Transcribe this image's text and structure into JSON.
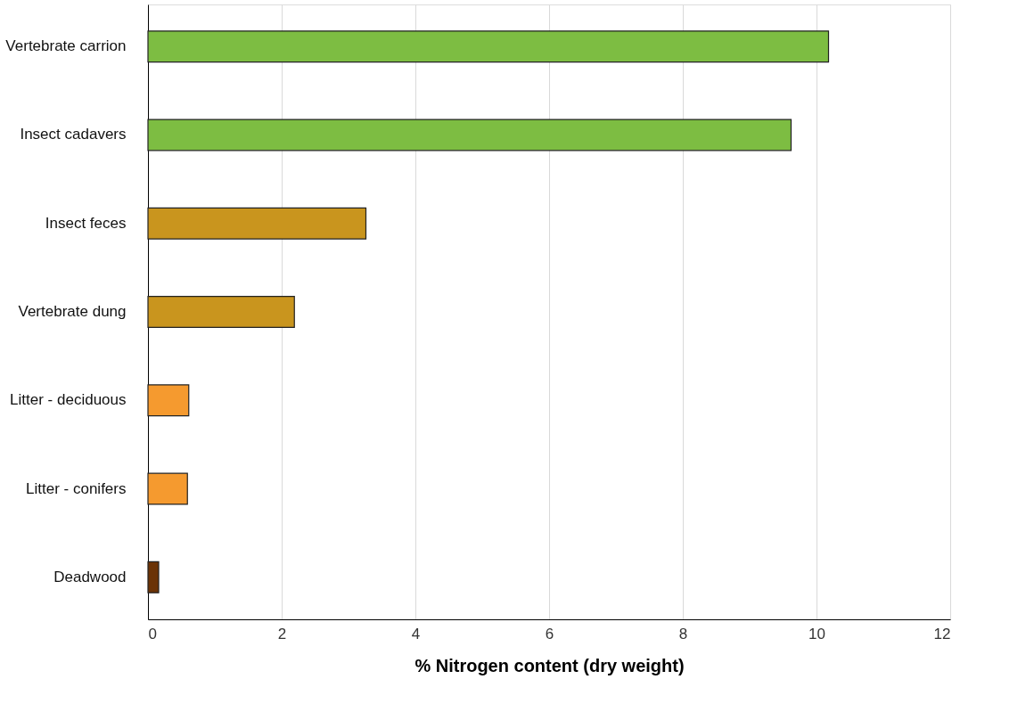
{
  "chart_data": {
    "type": "bar",
    "orientation": "horizontal",
    "xlabel": "% Nitrogen content (dry weight)",
    "categories": [
      "Vertebrate carrion",
      "Insect cadavers",
      "Insect feces",
      "Vertebrate dung",
      "Litter - deciduous",
      "Litter - conifers",
      "Deadwood"
    ],
    "values": [
      10.18,
      9.62,
      3.26,
      2.19,
      0.61,
      0.59,
      0.16
    ],
    "colors": [
      "#7dbd42",
      "#7dbd42",
      "#c9951e",
      "#c9951e",
      "#f59a2f",
      "#f59a2f",
      "#6b3306"
    ],
    "xlim": [
      0,
      12
    ],
    "xticks": [
      0,
      2,
      4,
      6,
      8,
      10,
      12
    ],
    "grid": "x"
  }
}
